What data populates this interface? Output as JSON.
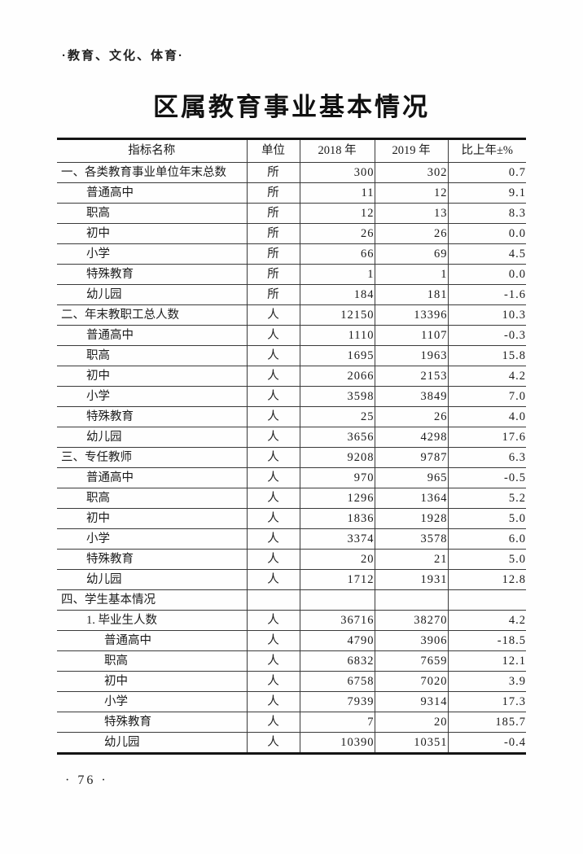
{
  "page": {
    "category_header": "·教育、文化、体育·",
    "title": "区属教育事业基本情况",
    "page_number": "· 76 ·"
  },
  "table": {
    "columns": [
      "指标名称",
      "单位",
      "2018 年",
      "2019 年",
      "比上年±%"
    ],
    "rows": [
      {
        "indent": 0,
        "name": "一、各类教育事业单位年末总数",
        "unit": "所",
        "v2018": "300",
        "v2019": "302",
        "pct": "0.7"
      },
      {
        "indent": 1,
        "name": "普通高中",
        "unit": "所",
        "v2018": "11",
        "v2019": "12",
        "pct": "9.1"
      },
      {
        "indent": 1,
        "name": "职高",
        "unit": "所",
        "v2018": "12",
        "v2019": "13",
        "pct": "8.3"
      },
      {
        "indent": 1,
        "name": "初中",
        "unit": "所",
        "v2018": "26",
        "v2019": "26",
        "pct": "0.0"
      },
      {
        "indent": 1,
        "name": "小学",
        "unit": "所",
        "v2018": "66",
        "v2019": "69",
        "pct": "4.5"
      },
      {
        "indent": 1,
        "name": "特殊教育",
        "unit": "所",
        "v2018": "1",
        "v2019": "1",
        "pct": "0.0"
      },
      {
        "indent": 1,
        "name": "幼儿园",
        "unit": "所",
        "v2018": "184",
        "v2019": "181",
        "pct": "-1.6"
      },
      {
        "indent": 0,
        "name": "二、年末教职工总人数",
        "unit": "人",
        "v2018": "12150",
        "v2019": "13396",
        "pct": "10.3"
      },
      {
        "indent": 1,
        "name": "普通高中",
        "unit": "人",
        "v2018": "1110",
        "v2019": "1107",
        "pct": "-0.3"
      },
      {
        "indent": 1,
        "name": "职高",
        "unit": "人",
        "v2018": "1695",
        "v2019": "1963",
        "pct": "15.8"
      },
      {
        "indent": 1,
        "name": "初中",
        "unit": "人",
        "v2018": "2066",
        "v2019": "2153",
        "pct": "4.2"
      },
      {
        "indent": 1,
        "name": "小学",
        "unit": "人",
        "v2018": "3598",
        "v2019": "3849",
        "pct": "7.0"
      },
      {
        "indent": 1,
        "name": "特殊教育",
        "unit": "人",
        "v2018": "25",
        "v2019": "26",
        "pct": "4.0"
      },
      {
        "indent": 1,
        "name": "幼儿园",
        "unit": "人",
        "v2018": "3656",
        "v2019": "4298",
        "pct": "17.6"
      },
      {
        "indent": 0,
        "name": "三、专任教师",
        "unit": "人",
        "v2018": "9208",
        "v2019": "9787",
        "pct": "6.3"
      },
      {
        "indent": 1,
        "name": "普通高中",
        "unit": "人",
        "v2018": "970",
        "v2019": "965",
        "pct": "-0.5"
      },
      {
        "indent": 1,
        "name": "职高",
        "unit": "人",
        "v2018": "1296",
        "v2019": "1364",
        "pct": "5.2"
      },
      {
        "indent": 1,
        "name": "初中",
        "unit": "人",
        "v2018": "1836",
        "v2019": "1928",
        "pct": "5.0"
      },
      {
        "indent": 1,
        "name": "小学",
        "unit": "人",
        "v2018": "3374",
        "v2019": "3578",
        "pct": "6.0"
      },
      {
        "indent": 1,
        "name": "特殊教育",
        "unit": "人",
        "v2018": "20",
        "v2019": "21",
        "pct": "5.0"
      },
      {
        "indent": 1,
        "name": "幼儿园",
        "unit": "人",
        "v2018": "1712",
        "v2019": "1931",
        "pct": "12.8"
      },
      {
        "indent": 0,
        "name": "四、学生基本情况",
        "unit": "",
        "v2018": "",
        "v2019": "",
        "pct": ""
      },
      {
        "indent": 1,
        "name": "1. 毕业生人数",
        "unit": "人",
        "v2018": "36716",
        "v2019": "38270",
        "pct": "4.2"
      },
      {
        "indent": 2,
        "name": "普通高中",
        "unit": "人",
        "v2018": "4790",
        "v2019": "3906",
        "pct": "-18.5"
      },
      {
        "indent": 2,
        "name": "职高",
        "unit": "人",
        "v2018": "6832",
        "v2019": "7659",
        "pct": "12.1"
      },
      {
        "indent": 2,
        "name": "初中",
        "unit": "人",
        "v2018": "6758",
        "v2019": "7020",
        "pct": "3.9"
      },
      {
        "indent": 2,
        "name": "小学",
        "unit": "人",
        "v2018": "7939",
        "v2019": "9314",
        "pct": "17.3"
      },
      {
        "indent": 2,
        "name": "特殊教育",
        "unit": "人",
        "v2018": "7",
        "v2019": "20",
        "pct": "185.7"
      },
      {
        "indent": 2,
        "name": "幼儿园",
        "unit": "人",
        "v2018": "10390",
        "v2019": "10351",
        "pct": "-0.4"
      }
    ]
  }
}
